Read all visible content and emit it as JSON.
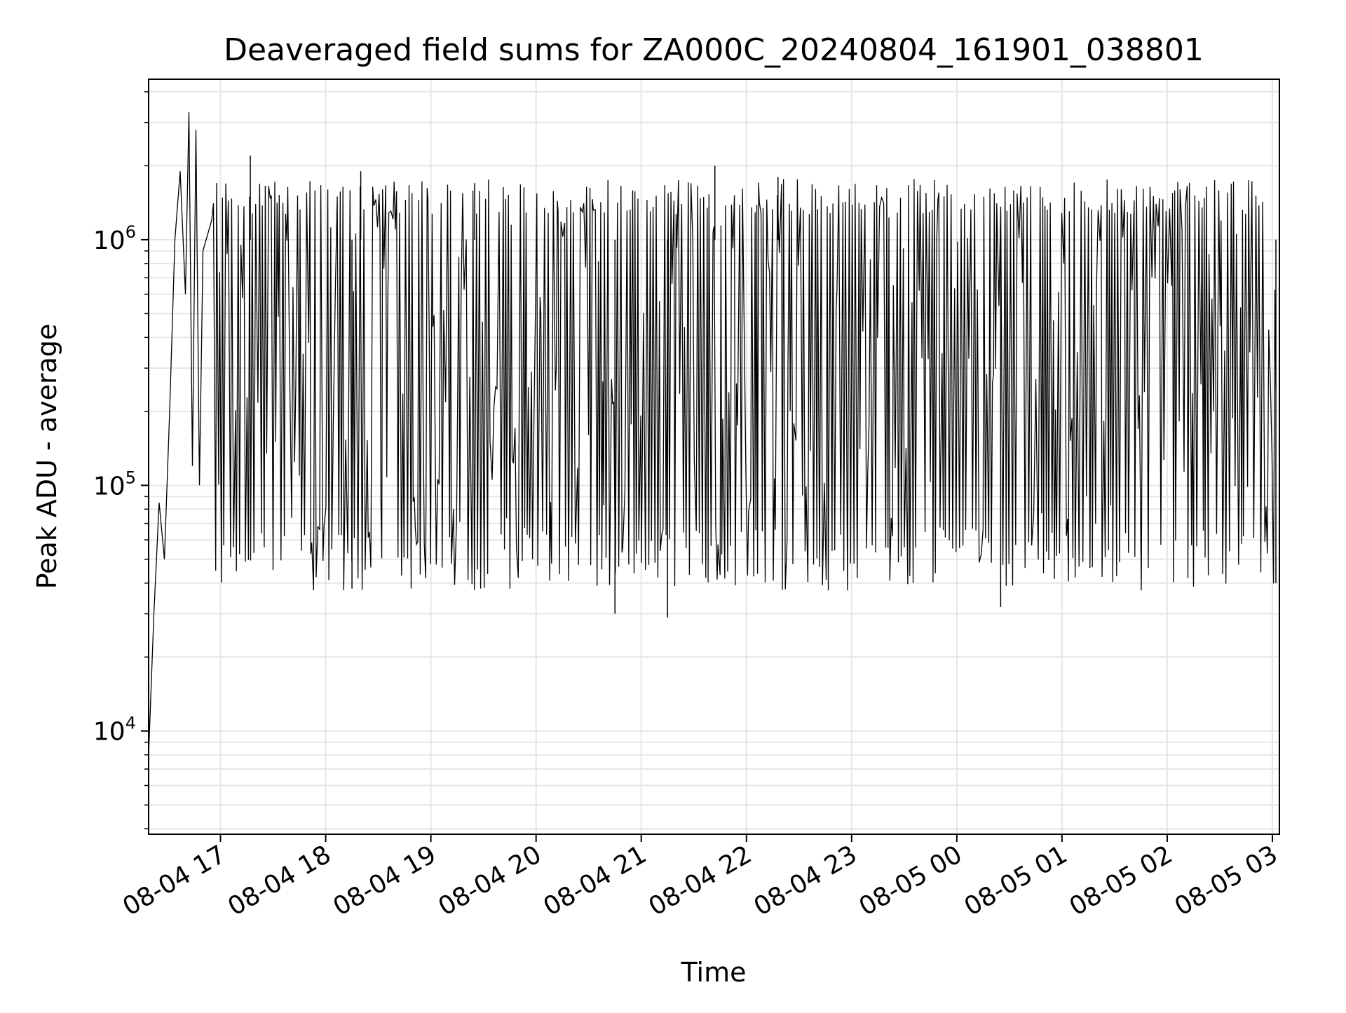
{
  "chart_data": {
    "type": "line",
    "title": "Deaveraged field sums for ZA000C_20240804_161901_038801",
    "xlabel": "Time",
    "ylabel": "Peak ADU - average",
    "y_scale": "log",
    "ylim": [
      3800,
      4500000
    ],
    "xlim": [
      "2024-08-04 16:19",
      "2024-08-05 03:04"
    ],
    "grid": true,
    "line_color": "#000000",
    "grid_color": "#e6e6e6",
    "x_ticks": [
      {
        "value": "2024-08-04 17:00",
        "label": "08-04 17"
      },
      {
        "value": "2024-08-04 18:00",
        "label": "08-04 18"
      },
      {
        "value": "2024-08-04 19:00",
        "label": "08-04 19"
      },
      {
        "value": "2024-08-04 20:00",
        "label": "08-04 20"
      },
      {
        "value": "2024-08-04 21:00",
        "label": "08-04 21"
      },
      {
        "value": "2024-08-04 22:00",
        "label": "08-04 22"
      },
      {
        "value": "2024-08-04 23:00",
        "label": "08-04 23"
      },
      {
        "value": "2024-08-05 00:00",
        "label": "08-05 00"
      },
      {
        "value": "2024-08-05 01:00",
        "label": "08-05 01"
      },
      {
        "value": "2024-08-05 02:00",
        "label": "08-05 02"
      },
      {
        "value": "2024-08-05 03:00",
        "label": "08-05 03"
      }
    ],
    "y_ticks": [
      {
        "value": 10000,
        "base": "10",
        "exp": "4"
      },
      {
        "value": 100000,
        "base": "10",
        "exp": "5"
      },
      {
        "value": 1000000,
        "base": "10",
        "exp": "6"
      }
    ],
    "series": [
      {
        "x": [
          "2024-08-04 16:19",
          "2024-08-04 16:22",
          "2024-08-04 16:25",
          "2024-08-04 16:28",
          "2024-08-04 16:31",
          "2024-08-04 16:34",
          "2024-08-04 16:37",
          "2024-08-04 16:40",
          "2024-08-04 16:42",
          "2024-08-04 16:44",
          "2024-08-04 16:46",
          "2024-08-04 16:48",
          "2024-08-04 16:50",
          "2024-08-04 16:55",
          "2024-08-04 17:17",
          "2024-08-04 18:15",
          "2024-08-04 18:20",
          "2024-08-04 19:25",
          "2024-08-04 20:45",
          "2024-08-04 21:15",
          "2024-08-04 21:42",
          "2024-08-04 22:18",
          "2024-08-05 00:25",
          "2024-08-05 03:02"
        ],
        "y": [
          8000,
          30000,
          85000,
          50000,
          200000,
          1000000,
          1900000,
          600000,
          3300000,
          120000,
          2800000,
          100000,
          900000,
          1200000,
          2200000,
          38000,
          1900000,
          1700000,
          30000,
          29000,
          2000000,
          1800000,
          32000,
          40000
        ]
      }
    ]
  }
}
